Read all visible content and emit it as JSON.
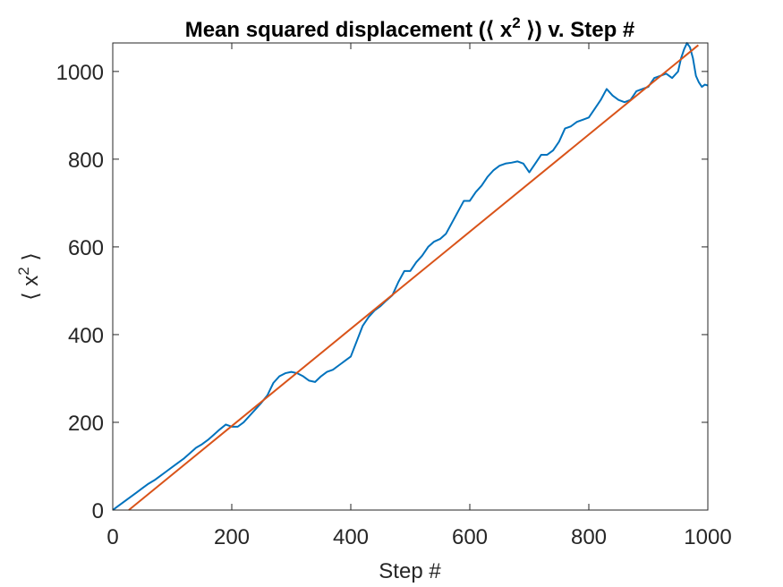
{
  "chart_data": {
    "type": "line",
    "title": "Mean squared displacement (⟨ x² ⟩) v. Step #",
    "title_parts": {
      "before": "Mean squared displacement (⟨ x",
      "sup": "2",
      "after": " ⟩) v. Step #"
    },
    "xlabel": "Step #",
    "ylabel_parts": {
      "left": "⟨ x",
      "sup": "2",
      "right": " ⟩"
    },
    "xlim": [
      0,
      1000
    ],
    "ylim": [
      0,
      1065
    ],
    "xticks": [
      0,
      200,
      400,
      600,
      800,
      1000
    ],
    "yticks": [
      0,
      200,
      400,
      600,
      800,
      1000
    ],
    "xtick_labels": [
      "0",
      "200",
      "400",
      "600",
      "800",
      "1000"
    ],
    "ytick_labels": [
      "0",
      "200",
      "400",
      "600",
      "800",
      "1000"
    ],
    "grid": false,
    "series": [
      {
        "color": "#0072BD",
        "x": [
          0,
          10,
          20,
          30,
          40,
          50,
          60,
          70,
          80,
          90,
          100,
          110,
          120,
          130,
          140,
          150,
          160,
          170,
          180,
          190,
          200,
          210,
          220,
          230,
          240,
          250,
          260,
          270,
          280,
          290,
          300,
          310,
          320,
          330,
          340,
          350,
          360,
          370,
          380,
          390,
          400,
          410,
          420,
          430,
          440,
          450,
          460,
          470,
          480,
          490,
          500,
          510,
          520,
          530,
          540,
          550,
          560,
          570,
          580,
          590,
          600,
          610,
          620,
          630,
          640,
          650,
          660,
          670,
          680,
          690,
          700,
          710,
          720,
          730,
          740,
          750,
          760,
          770,
          780,
          790,
          800,
          810,
          820,
          830,
          840,
          850,
          860,
          870,
          880,
          890,
          900,
          910,
          920,
          930,
          940,
          950,
          955,
          960,
          965,
          970,
          975,
          980,
          985,
          990,
          995,
          1000
        ],
        "y": [
          0,
          10,
          20,
          30,
          40,
          50,
          60,
          68,
          78,
          88,
          98,
          108,
          118,
          130,
          142,
          150,
          160,
          172,
          184,
          195,
          190,
          190,
          200,
          215,
          230,
          245,
          262,
          290,
          305,
          312,
          315,
          312,
          305,
          295,
          292,
          305,
          315,
          320,
          330,
          340,
          350,
          385,
          420,
          440,
          455,
          465,
          478,
          490,
          520,
          545,
          545,
          565,
          580,
          600,
          612,
          618,
          630,
          655,
          680,
          705,
          705,
          725,
          740,
          760,
          775,
          785,
          790,
          792,
          795,
          790,
          770,
          790,
          810,
          810,
          820,
          840,
          870,
          875,
          885,
          890,
          895,
          915,
          935,
          960,
          945,
          935,
          930,
          935,
          955,
          960,
          965,
          985,
          990,
          995,
          985,
          1000,
          1030,
          1050,
          1065,
          1055,
          1030,
          990,
          975,
          965,
          970,
          968
        ]
      },
      {
        "color": "#D95319",
        "x": [
          27,
          984
        ],
        "y": [
          0,
          1060
        ]
      }
    ]
  }
}
